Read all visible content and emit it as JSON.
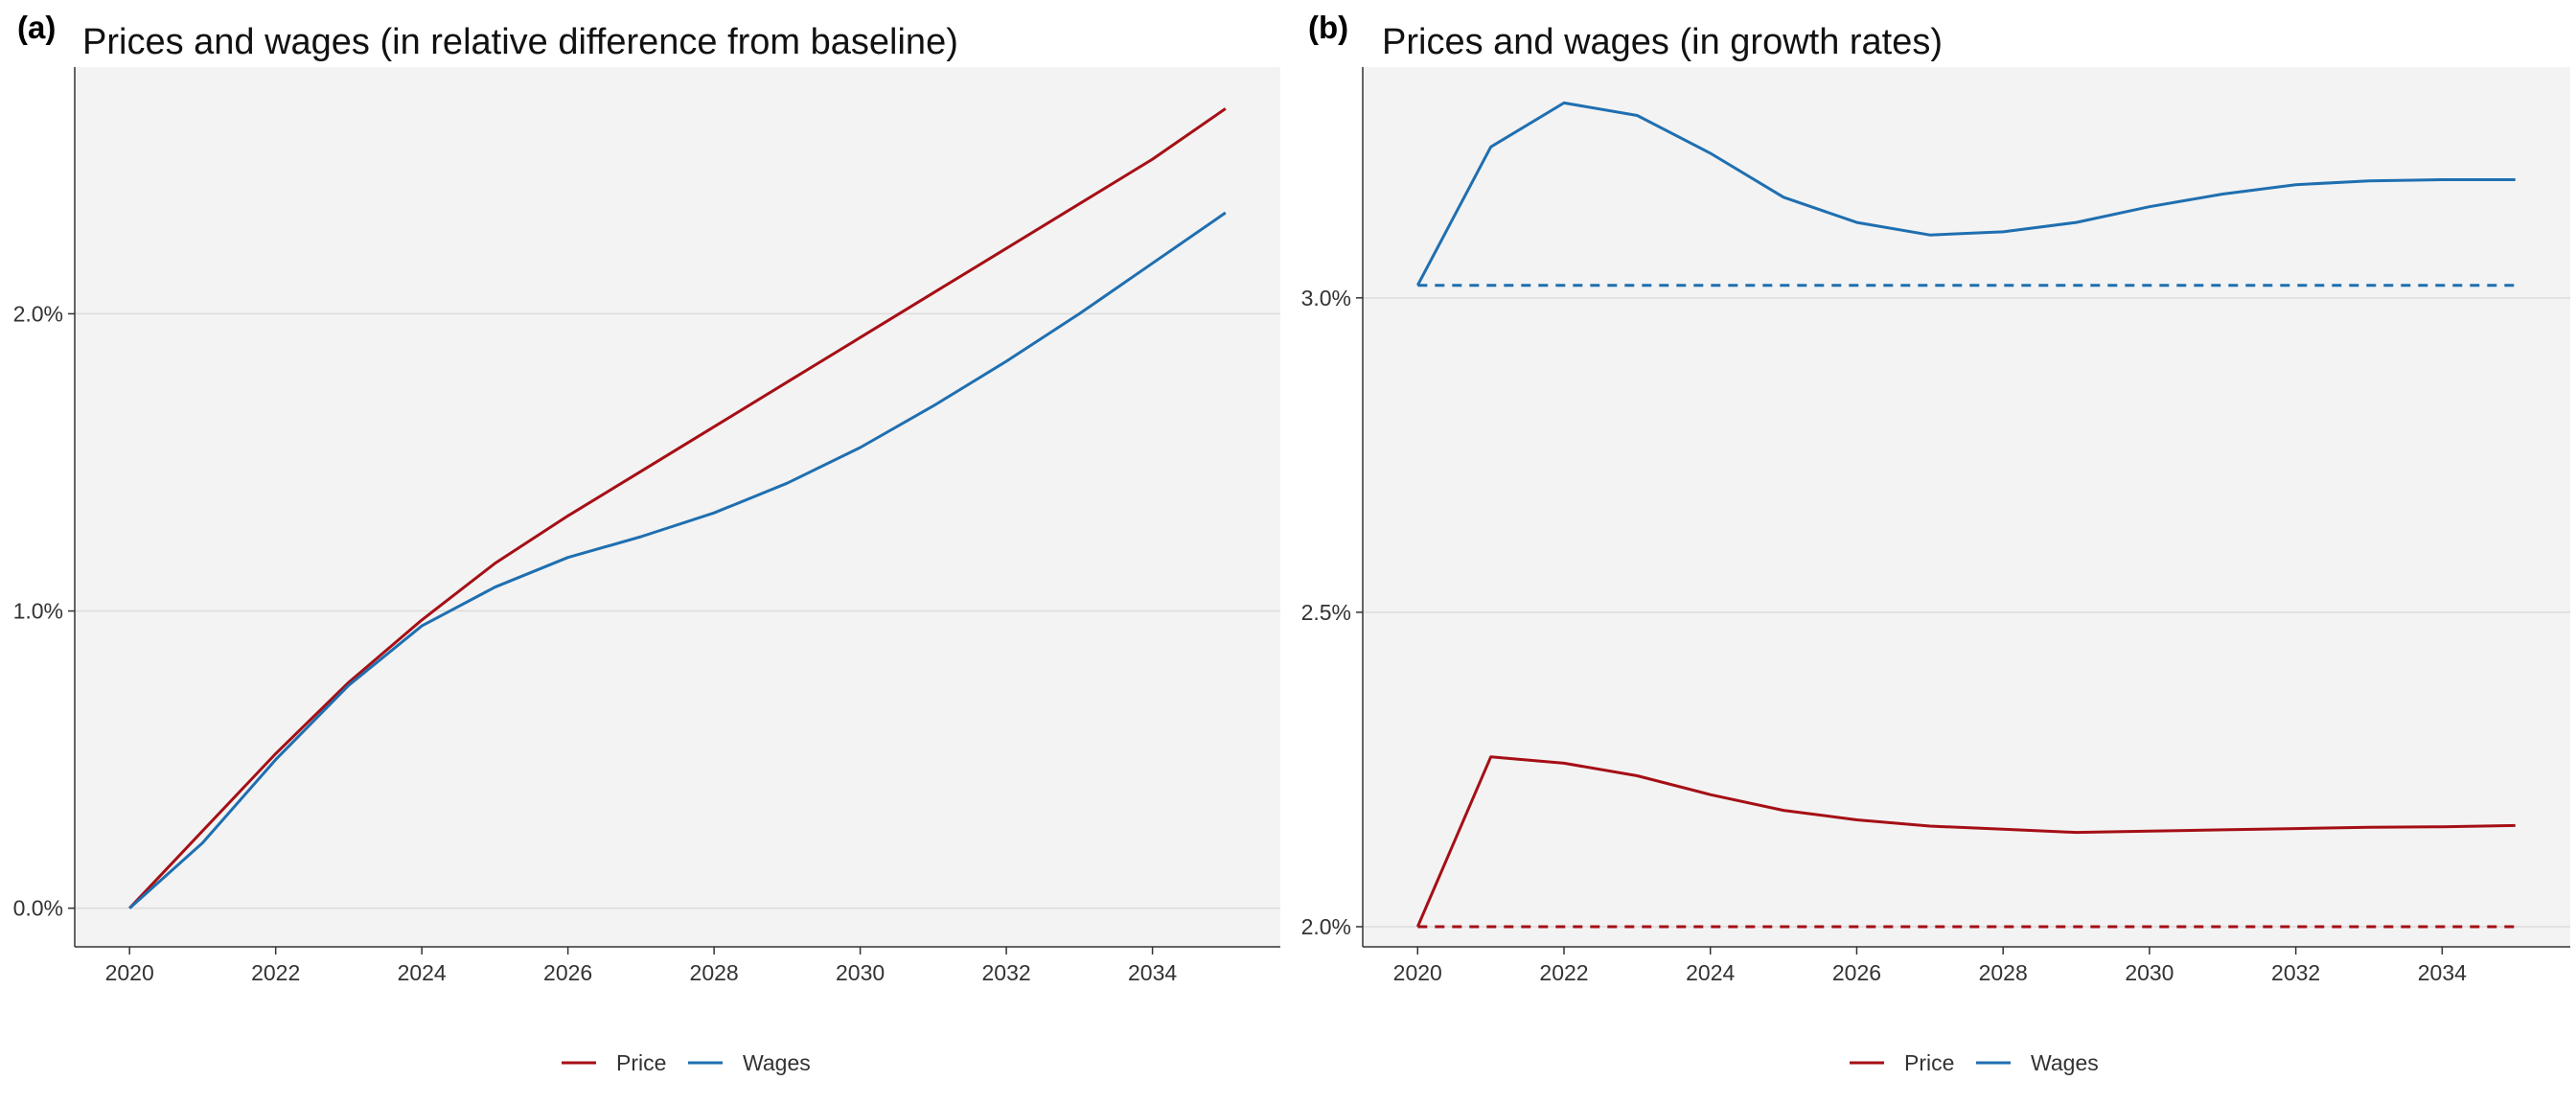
{
  "colors": {
    "price": "#a50f15",
    "wages": "#1f6fb0",
    "panel_bg": "#f3f3f3",
    "grid": "#dcdcdc",
    "axis": "#333333"
  },
  "legend": {
    "price_label": "Price",
    "wages_label": "Wages"
  },
  "chart_data": [
    {
      "panel": "(a)",
      "type": "line",
      "title": "Prices and wages (in relative difference from baseline)",
      "xlabel": "",
      "ylabel": "",
      "x": [
        2020,
        2021,
        2022,
        2023,
        2024,
        2025,
        2026,
        2027,
        2028,
        2029,
        2030,
        2031,
        2032,
        2033,
        2034,
        2035
      ],
      "xlim": [
        2019.25,
        2035.75
      ],
      "ylim": [
        -0.13,
        2.83
      ],
      "x_ticks": [
        2020,
        2022,
        2024,
        2026,
        2028,
        2030,
        2032,
        2034
      ],
      "y_ticks": [
        0,
        1,
        2
      ],
      "y_tick_labels": [
        "0.0%",
        "1.0%",
        "2.0%"
      ],
      "grid": "horizontal",
      "legend_position": "bottom",
      "series": [
        {
          "name": "Price",
          "style": "solid",
          "values": [
            0.0,
            0.26,
            0.52,
            0.76,
            0.97,
            1.16,
            1.32,
            1.47,
            1.62,
            1.77,
            1.92,
            2.07,
            2.22,
            2.37,
            2.52,
            2.69
          ]
        },
        {
          "name": "Wages",
          "style": "solid",
          "values": [
            0.0,
            0.22,
            0.5,
            0.75,
            0.95,
            1.08,
            1.18,
            1.25,
            1.33,
            1.43,
            1.55,
            1.69,
            1.84,
            2.0,
            2.17,
            2.34
          ]
        }
      ]
    },
    {
      "panel": "(b)",
      "type": "line",
      "title": "Prices and wages (in growth rates)",
      "xlabel": "",
      "ylabel": "",
      "x": [
        2020,
        2021,
        2022,
        2023,
        2024,
        2025,
        2026,
        2027,
        2028,
        2029,
        2030,
        2031,
        2032,
        2033,
        2034,
        2035
      ],
      "xlim": [
        2019.25,
        2035.75
      ],
      "ylim": [
        1.968,
        3.367
      ],
      "x_ticks": [
        2020,
        2022,
        2024,
        2026,
        2028,
        2030,
        2032,
        2034
      ],
      "y_ticks": [
        2.0,
        2.5,
        3.0
      ],
      "y_tick_labels": [
        "2.0%",
        "2.5%",
        "3.0%"
      ],
      "grid": "horizontal",
      "legend_position": "bottom",
      "series": [
        {
          "name": "Price",
          "style": "solid",
          "values": [
            2.0,
            2.27,
            2.26,
            2.24,
            2.21,
            2.185,
            2.17,
            2.16,
            2.155,
            2.15,
            2.152,
            2.154,
            2.156,
            2.158,
            2.159,
            2.161
          ]
        },
        {
          "name": "Wages",
          "style": "solid",
          "values": [
            3.02,
            3.24,
            3.31,
            3.29,
            3.23,
            3.16,
            3.12,
            3.1,
            3.105,
            3.12,
            3.145,
            3.165,
            3.18,
            3.186,
            3.188,
            3.188
          ]
        },
        {
          "name": "Price",
          "style": "dashed",
          "values": [
            2.0,
            2.0,
            2.0,
            2.0,
            2.0,
            2.0,
            2.0,
            2.0,
            2.0,
            2.0,
            2.0,
            2.0,
            2.0,
            2.0,
            2.0,
            2.0
          ]
        },
        {
          "name": "Wages",
          "style": "dashed",
          "values": [
            3.02,
            3.02,
            3.02,
            3.02,
            3.02,
            3.02,
            3.02,
            3.02,
            3.02,
            3.02,
            3.02,
            3.02,
            3.02,
            3.02,
            3.02,
            3.02
          ]
        }
      ]
    }
  ]
}
